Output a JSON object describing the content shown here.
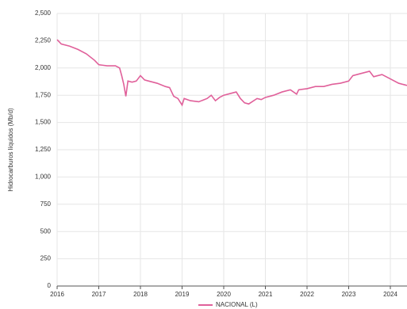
{
  "chart_data": {
    "type": "line",
    "y_label": "Hidrocarburos líquidos (Mb/d)",
    "x": [
      2016.0,
      2016.1,
      2016.3,
      2016.5,
      2016.7,
      2016.9,
      2017.0,
      2017.2,
      2017.4,
      2017.5,
      2017.55,
      2017.6,
      2017.65,
      2017.7,
      2017.8,
      2017.9,
      2018.0,
      2018.1,
      2018.2,
      2018.4,
      2018.6,
      2018.7,
      2018.8,
      2018.9,
      2019.0,
      2019.05,
      2019.2,
      2019.4,
      2019.6,
      2019.7,
      2019.8,
      2019.9,
      2020.0,
      2020.2,
      2020.3,
      2020.4,
      2020.5,
      2020.6,
      2020.8,
      2020.9,
      2021.0,
      2021.2,
      2021.4,
      2021.6,
      2021.75,
      2021.8,
      2022.0,
      2022.2,
      2022.4,
      2022.6,
      2022.8,
      2023.0,
      2023.1,
      2023.3,
      2023.5,
      2023.6,
      2023.8,
      2024.0,
      2024.2,
      2024.4
    ],
    "series": [
      {
        "name": "NACIONAL (L)",
        "color": "#e0609a",
        "values": [
          2260,
          2220,
          2200,
          2170,
          2130,
          2070,
          2030,
          2020,
          2020,
          2000,
          1930,
          1850,
          1740,
          1880,
          1870,
          1880,
          1930,
          1890,
          1880,
          1860,
          1830,
          1820,
          1740,
          1720,
          1660,
          1720,
          1700,
          1690,
          1720,
          1750,
          1700,
          1730,
          1750,
          1770,
          1780,
          1720,
          1680,
          1670,
          1720,
          1710,
          1730,
          1750,
          1780,
          1800,
          1760,
          1800,
          1810,
          1830,
          1830,
          1850,
          1860,
          1880,
          1930,
          1950,
          1970,
          1920,
          1940,
          1900,
          1860,
          1840
        ]
      }
    ],
    "xlim": [
      2016,
      2024.4
    ],
    "xticks": [
      2016,
      2017,
      2018,
      2019,
      2020,
      2021,
      2022,
      2023,
      2024
    ],
    "ylim": [
      0,
      2500
    ],
    "yticks": [
      0,
      250,
      500,
      750,
      {
        "value": 1000,
        "label": "1,000"
      },
      {
        "value": 1250,
        "label": "1,250"
      },
      {
        "value": 1500,
        "label": "1,500"
      },
      {
        "value": 1750,
        "label": "1,750"
      },
      {
        "value": 2000,
        "label": "2,000"
      },
      {
        "value": 2250,
        "label": "2,250"
      },
      {
        "value": 2500,
        "label": "2,500"
      }
    ],
    "grid": true
  }
}
